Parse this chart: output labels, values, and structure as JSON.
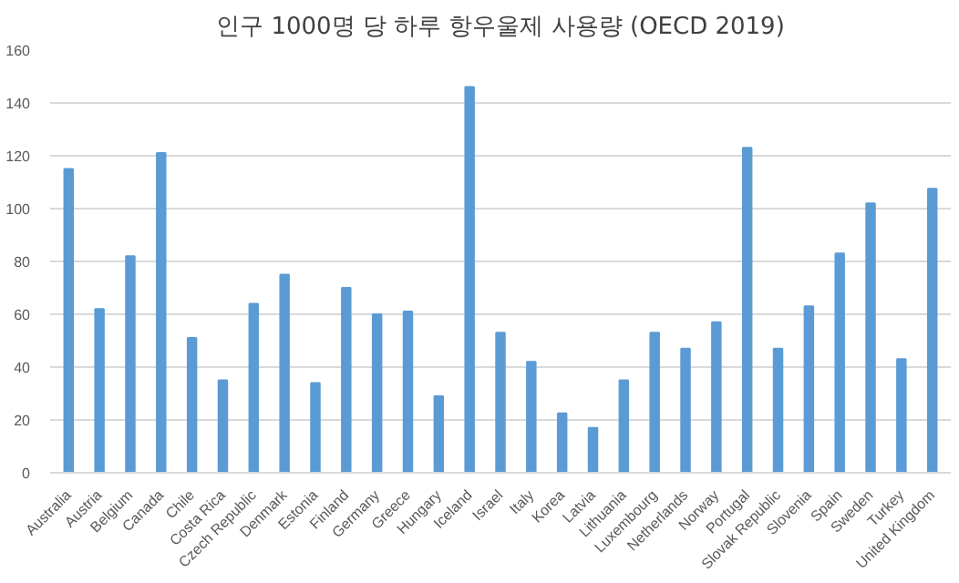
{
  "chart_data": {
    "type": "bar",
    "title": "인구 1000명 당 하루 항우울제 사용량 (OECD 2019)",
    "categories": [
      "Australia",
      "Austria",
      "Belgium",
      "Canada",
      "Chile",
      "Costa Rica",
      "Czech Republic",
      "Denmark",
      "Estonia",
      "Finland",
      "Germany",
      "Greece",
      "Hungary",
      "Iceland",
      "Israel",
      "Italy",
      "Korea",
      "Latvia",
      "Lithuania",
      "Luxembourg",
      "Netherlands",
      "Norway",
      "Portugal",
      "Slovak Republic",
      "Slovenia",
      "Spain",
      "Sweden",
      "Turkey",
      "United Kingdom"
    ],
    "values": [
      115,
      62,
      82,
      121,
      51,
      35,
      64,
      75,
      34,
      70,
      60,
      61,
      29,
      146,
      53,
      42,
      22.5,
      17,
      35,
      53,
      47,
      57,
      123,
      47,
      63,
      83,
      102,
      43,
      107.5
    ],
    "color": "#5b9bd5",
    "ylim": [
      0,
      160
    ],
    "yticks": [
      0,
      20,
      40,
      60,
      80,
      100,
      120,
      140,
      160
    ],
    "grid": "y"
  }
}
